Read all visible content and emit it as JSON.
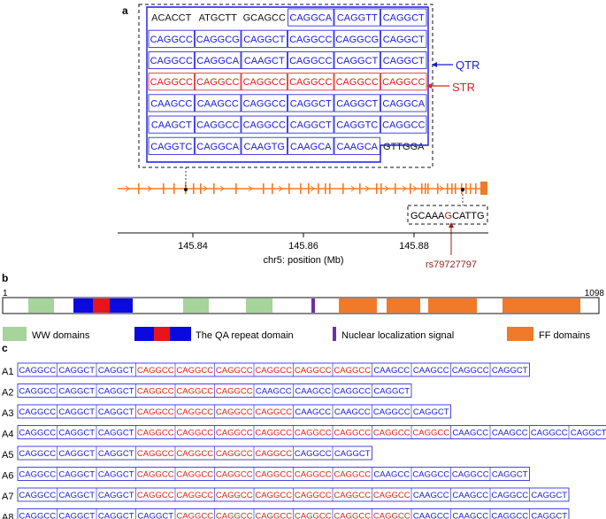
{
  "colors": {
    "blue": "#1a1adc",
    "red": "#e0201c",
    "orange": "#f07a2a",
    "green": "#a6d49a",
    "purple": "#7030a0",
    "black": "#111111",
    "darkred": "#9b1c1c"
  },
  "panel_a": {
    "label": "a",
    "rows": [
      [
        {
          "t": "ACACCT",
          "c": "black"
        },
        {
          "t": "ATGCTT",
          "c": "black"
        },
        {
          "t": "GCAGCC",
          "c": "black"
        },
        {
          "t": "CAGGCA",
          "c": "blue"
        },
        {
          "t": "CAGGTT",
          "c": "blue"
        },
        {
          "t": "CAGGCT",
          "c": "blue"
        }
      ],
      [
        {
          "t": "CAGGCC",
          "c": "blue"
        },
        {
          "t": "CAGGCG",
          "c": "blue"
        },
        {
          "t": "CAGGCT",
          "c": "blue"
        },
        {
          "t": "CAGGCC",
          "c": "blue"
        },
        {
          "t": "CAGGCG",
          "c": "blue"
        },
        {
          "t": "CAGGCT",
          "c": "blue"
        }
      ],
      [
        {
          "t": "CAGGCC",
          "c": "blue"
        },
        {
          "t": "CAGGCA",
          "c": "blue"
        },
        {
          "t": "CAAGCT",
          "c": "blue"
        },
        {
          "t": "CAGGCC",
          "c": "blue"
        },
        {
          "t": "CAGGCT",
          "c": "blue"
        },
        {
          "t": "CAGGCT",
          "c": "blue"
        }
      ],
      [
        {
          "t": "CAGGCC",
          "c": "red"
        },
        {
          "t": "CAGGCC",
          "c": "red"
        },
        {
          "t": "CAGGCC",
          "c": "red"
        },
        {
          "t": "CAGGCC",
          "c": "red"
        },
        {
          "t": "CAGGCC",
          "c": "red"
        },
        {
          "t": "CAGGCC",
          "c": "red"
        }
      ],
      [
        {
          "t": "CAAGCC",
          "c": "blue"
        },
        {
          "t": "CAAGCC",
          "c": "blue"
        },
        {
          "t": "CAGGCC",
          "c": "blue"
        },
        {
          "t": "CAGGCT",
          "c": "blue"
        },
        {
          "t": "CAGGCT",
          "c": "blue"
        },
        {
          "t": "CAGGCA",
          "c": "blue"
        }
      ],
      [
        {
          "t": "CAAGCT",
          "c": "blue"
        },
        {
          "t": "CAGGCC",
          "c": "blue"
        },
        {
          "t": "CAGGCC",
          "c": "blue"
        },
        {
          "t": "CAGGCT",
          "c": "blue"
        },
        {
          "t": "CAGGTC",
          "c": "blue"
        },
        {
          "t": "CAGGCC",
          "c": "blue"
        }
      ],
      [
        {
          "t": "CAGGTC",
          "c": "blue"
        },
        {
          "t": "CAGGCA",
          "c": "blue"
        },
        {
          "t": "CAAGTG",
          "c": "blue"
        },
        {
          "t": "CAAGCA",
          "c": "blue"
        },
        {
          "t": "CAAGCA",
          "c": "blue"
        },
        {
          "t": "GTTGGA",
          "c": "black"
        }
      ]
    ],
    "qtr_label": "QTR",
    "str_label": "STR",
    "snp_seq_pre": "GCAAA",
    "snp_allele": "G",
    "snp_seq_post": "CATTG",
    "snp_id": "rs79727797",
    "axis_ticks": [
      "145.84",
      "145.86",
      "145.88"
    ],
    "axis_label": "chr5: position (Mb)"
  },
  "panel_b": {
    "label": "b",
    "start": "1",
    "end": "1098",
    "legend": {
      "ww": "WW domains",
      "qa": "The QA repeat domain",
      "nls": "Nuclear localization signal",
      "ff": "FF domains"
    }
  },
  "panel_c": {
    "label": "c",
    "alleles": [
      {
        "name": "A1",
        "blue_pre": 3,
        "red": 6,
        "blue_post": [
          "CAAGCC",
          "CAAGCC",
          "CAGGCC",
          "CAGGCT"
        ]
      },
      {
        "name": "A2",
        "blue_pre": 3,
        "red": 3,
        "blue_post": [
          "CAAGCC",
          "CAAGCC",
          "CAGGCC",
          "CAGGCT"
        ]
      },
      {
        "name": "A3",
        "blue_pre": 3,
        "red": 4,
        "blue_post": [
          "CAAGCC",
          "CAAGCC",
          "CAGGCC",
          "CAGGCT"
        ]
      },
      {
        "name": "A4",
        "blue_pre": 3,
        "red": 8,
        "blue_post": [
          "CAAGCC",
          "CAAGCC",
          "CAGGCC",
          "CAGGCT"
        ]
      },
      {
        "name": "A5",
        "blue_pre": 3,
        "red": 4,
        "blue_post": [
          "CAGGCC",
          "CAGGCT"
        ]
      },
      {
        "name": "A6",
        "blue_pre": 3,
        "red": 6,
        "blue_post": [
          "CAAGCC",
          "CAGGCC",
          "CAGGCC",
          "CAGGCT"
        ]
      },
      {
        "name": "A7",
        "blue_pre": 3,
        "red": 7,
        "blue_post": [
          "CAAGCC",
          "CAAGCC",
          "CAGGCC",
          "CAGGCT"
        ]
      },
      {
        "name": "A8",
        "blue_pre": 4,
        "red": 6,
        "blue_post": [
          "CAAGCC",
          "CAAGCC",
          "CAGGCC",
          "CAGGCT"
        ]
      }
    ],
    "pre_codons": [
      "CAGGCC",
      "CAGGCT",
      "CAGGCT",
      "CAGGCT"
    ],
    "red_codon": "CAGGCC"
  }
}
